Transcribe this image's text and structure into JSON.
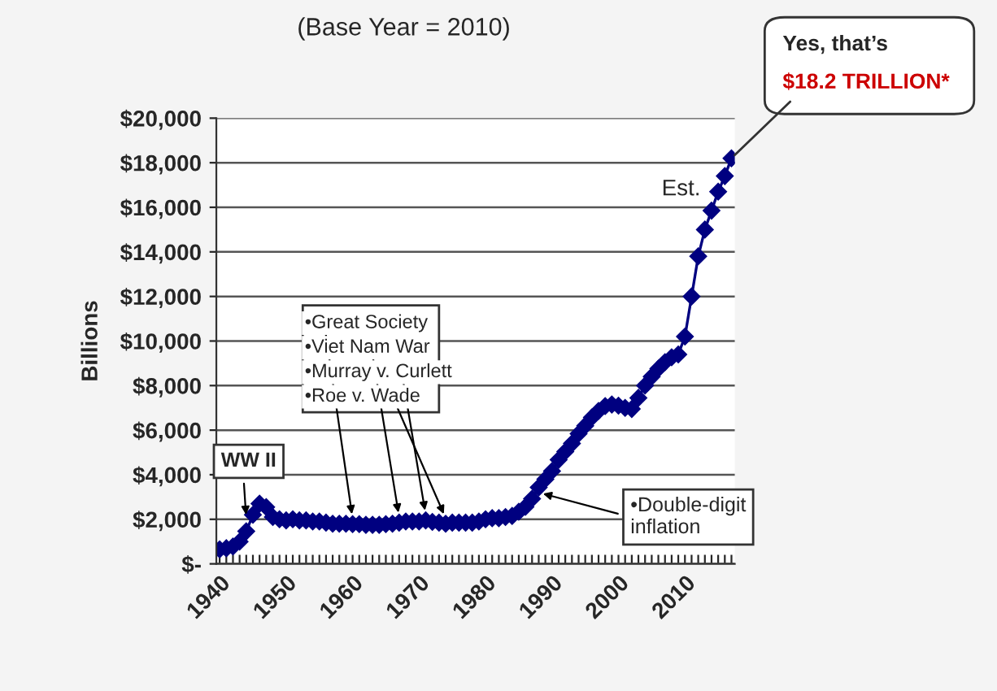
{
  "chart_data": {
    "type": "line",
    "title": "(Base Year = 2010)",
    "ylabel": "Billions",
    "x": [
      1940,
      1941,
      1942,
      1943,
      1944,
      1945,
      1946,
      1947,
      1948,
      1949,
      1950,
      1951,
      1952,
      1953,
      1954,
      1955,
      1956,
      1957,
      1958,
      1959,
      1960,
      1961,
      1962,
      1963,
      1964,
      1965,
      1966,
      1967,
      1968,
      1969,
      1970,
      1971,
      1972,
      1973,
      1974,
      1975,
      1976,
      1977,
      1978,
      1979,
      1980,
      1981,
      1982,
      1983,
      1984,
      1985,
      1986,
      1987,
      1988,
      1989,
      1990,
      1991,
      1992,
      1993,
      1994,
      1995,
      1996,
      1997,
      1998,
      1999,
      2000,
      2001,
      2002,
      2003,
      2004,
      2005,
      2006,
      2007,
      2008,
      2009,
      2010,
      2011,
      2012,
      2013,
      2014,
      2015,
      2016,
      2017
    ],
    "series": [
      {
        "color": "#000080",
        "values": [
          650,
          700,
          780,
          1000,
          1460,
          2200,
          2700,
          2550,
          2100,
          2000,
          1950,
          2000,
          1950,
          1950,
          1900,
          1900,
          1850,
          1800,
          1800,
          1800,
          1780,
          1780,
          1750,
          1750,
          1750,
          1780,
          1800,
          1850,
          1900,
          1900,
          1900,
          1950,
          1880,
          1850,
          1800,
          1850,
          1850,
          1850,
          1850,
          1900,
          2000,
          2050,
          2050,
          2100,
          2150,
          2340,
          2560,
          2920,
          3430,
          3800,
          4160,
          4670,
          5040,
          5400,
          5840,
          6200,
          6570,
          6860,
          7080,
          7150,
          7100,
          7000,
          6950,
          7450,
          8000,
          8400,
          8760,
          9050,
          9270,
          9400,
          10200,
          12000,
          13800,
          15000,
          15850,
          16700,
          17400,
          18200
        ]
      }
    ],
    "ylim": [
      0,
      20000
    ],
    "yticks": [
      {
        "value": 0,
        "label": "$-"
      },
      {
        "value": 2000,
        "label": "$2,000"
      },
      {
        "value": 4000,
        "label": "$4,000"
      },
      {
        "value": 6000,
        "label": "$6,000"
      },
      {
        "value": 8000,
        "label": "$8,000"
      },
      {
        "value": 10000,
        "label": "$10,000"
      },
      {
        "value": 12000,
        "label": "$12,000"
      },
      {
        "value": 14000,
        "label": "$14,000"
      },
      {
        "value": 16000,
        "label": "$16,000"
      },
      {
        "value": 18000,
        "label": "$18,000"
      },
      {
        "value": 20000,
        "label": "$20,000"
      }
    ],
    "xlim": [
      1939.5,
      2017.5
    ],
    "xticks": [
      1940,
      {
        "value": 1941,
        "label": null
      },
      {
        "value": 1942,
        "label": null
      },
      {
        "value": 1943,
        "label": null
      },
      {
        "value": 1944,
        "label": null
      },
      {
        "value": 1945,
        "label": null
      },
      {
        "value": 1946,
        "label": null
      },
      {
        "value": 1947,
        "label": null
      },
      {
        "value": 1948,
        "label": null
      },
      {
        "value": 1949,
        "label": null
      },
      1950,
      {
        "value": 1951,
        "label": null
      },
      {
        "value": 1952,
        "label": null
      },
      {
        "value": 1953,
        "label": null
      },
      {
        "value": 1954,
        "label": null
      },
      {
        "value": 1955,
        "label": null
      },
      {
        "value": 1956,
        "label": null
      },
      {
        "value": 1957,
        "label": null
      },
      {
        "value": 1958,
        "label": null
      },
      {
        "value": 1959,
        "label": null
      },
      1960,
      {
        "value": 1961,
        "label": null
      },
      {
        "value": 1962,
        "label": null
      },
      {
        "value": 1963,
        "label": null
      },
      {
        "value": 1964,
        "label": null
      },
      {
        "value": 1965,
        "label": null
      },
      {
        "value": 1966,
        "label": null
      },
      {
        "value": 1967,
        "label": null
      },
      {
        "value": 1968,
        "label": null
      },
      {
        "value": 1969,
        "label": null
      },
      1970,
      {
        "value": 1971,
        "label": null
      },
      {
        "value": 1972,
        "label": null
      },
      {
        "value": 1973,
        "label": null
      },
      {
        "value": 1974,
        "label": null
      },
      {
        "value": 1975,
        "label": null
      },
      {
        "value": 1976,
        "label": null
      },
      {
        "value": 1977,
        "label": null
      },
      {
        "value": 1978,
        "label": null
      },
      {
        "value": 1979,
        "label": null
      },
      1980,
      {
        "value": 1981,
        "label": null
      },
      {
        "value": 1982,
        "label": null
      },
      {
        "value": 1983,
        "label": null
      },
      {
        "value": 1984,
        "label": null
      },
      {
        "value": 1985,
        "label": null
      },
      {
        "value": 1986,
        "label": null
      },
      {
        "value": 1987,
        "label": null
      },
      {
        "value": 1988,
        "label": null
      },
      {
        "value": 1989,
        "label": null
      },
      1990,
      {
        "value": 1991,
        "label": null
      },
      {
        "value": 1992,
        "label": null
      },
      {
        "value": 1993,
        "label": null
      },
      {
        "value": 1994,
        "label": null
      },
      {
        "value": 1995,
        "label": null
      },
      {
        "value": 1996,
        "label": null
      },
      {
        "value": 1997,
        "label": null
      },
      {
        "value": 1998,
        "label": null
      },
      {
        "value": 1999,
        "label": null
      },
      2000,
      {
        "value": 2001,
        "label": null
      },
      {
        "value": 2002,
        "label": null
      },
      {
        "value": 2003,
        "label": null
      },
      {
        "value": 2004,
        "label": null
      },
      {
        "value": 2005,
        "label": null
      },
      {
        "value": 2006,
        "label": null
      },
      {
        "value": 2007,
        "label": null
      },
      {
        "value": 2008,
        "label": null
      },
      {
        "value": 2009,
        "label": null
      },
      2010,
      {
        "value": 2011,
        "label": null
      },
      {
        "value": 2012,
        "label": null
      },
      {
        "value": 2013,
        "label": null
      },
      {
        "value": 2014,
        "label": null
      },
      {
        "value": 2015,
        "label": null
      },
      {
        "value": 2016,
        "label": null
      },
      {
        "value": 2017,
        "label": null
      }
    ],
    "grid": "y",
    "marker": "diamond",
    "line_style": "solid",
    "annotations": [
      {
        "text": "WW II",
        "x": 1944,
        "y": 2000
      },
      {
        "text": "•Great Society",
        "x": 1960,
        "y": 1780
      },
      {
        "text": "•Viet Nam War",
        "x": 1967,
        "y": 1850
      },
      {
        "text": "•Murray v. Curlett",
        "x": 1971,
        "y": 1950
      },
      {
        "text": "•Roe v. Wade",
        "x": 1974,
        "y": 1800
      },
      {
        "text": "•Double-digit\ninflation",
        "x": 1988,
        "y": 3200
      },
      {
        "text": "Est.",
        "x": 2015,
        "y": 16700
      },
      "Yes, that’s",
      {
        "text": "$18.2 TRILLION*",
        "x": 2017,
        "y": 18200
      }
    ]
  }
}
